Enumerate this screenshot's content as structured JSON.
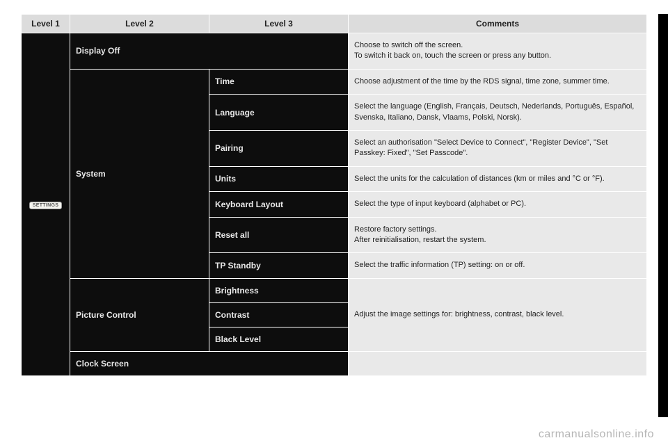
{
  "headers": {
    "level1": "Level 1",
    "level2": "Level 2",
    "level3": "Level 3",
    "comments": "Comments"
  },
  "level1_button": "SETTINGS",
  "rows": [
    {
      "l2": "Display Off",
      "l3": "",
      "comment": "Choose to switch off the screen.\nTo switch it back on, touch the screen or press any button."
    },
    {
      "l2_group": "System",
      "l2_rowspan": 7,
      "l3": "Time",
      "comment": "Choose adjustment of the time by the RDS signal, time zone, summer time."
    },
    {
      "l3": "Language",
      "comment": "Select the language (English, Français, Deutsch, Nederlands, Português, Español, Svenska, Italiano, Dansk, Vlaams, Polski, Norsk)."
    },
    {
      "l3": "Pairing",
      "comment": "Select an authorisation \"Select Device to Connect\", \"Register Device\", \"Set Passkey: Fixed\", \"Set Passcode\"."
    },
    {
      "l3": "Units",
      "comment": "Select the units for the calculation of distances (km or miles and °C or °F)."
    },
    {
      "l3": "Keyboard Layout",
      "comment": "Select the type of input keyboard (alphabet or PC)."
    },
    {
      "l3": "Reset all",
      "comment": "Restore factory settings.\nAfter reinitialisation, restart the system."
    },
    {
      "l3": "TP Standby",
      "comment": "Select the traffic information (TP) setting: on or off."
    },
    {
      "l2_group": "Picture Control",
      "l2_rowspan": 3,
      "l3": "Brightness",
      "comment_group": "Adjust the image settings for: brightness, contrast, black level.",
      "comment_rowspan": 3
    },
    {
      "l3": "Contrast"
    },
    {
      "l3": "Black Level"
    },
    {
      "l2": "Clock Screen",
      "l3": "",
      "comment": ""
    }
  ],
  "watermark": "carmanualsonline.info"
}
